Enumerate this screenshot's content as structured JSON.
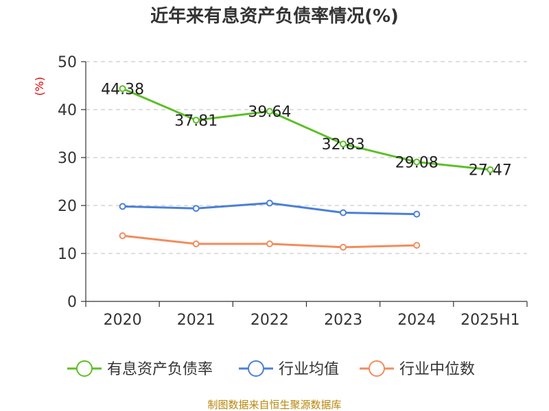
{
  "chart_data": {
    "type": "line",
    "title": "近年来有息资产负债率情况(%)",
    "ylabel": "(%)",
    "xlabel": "",
    "categories": [
      "2020",
      "2021",
      "2022",
      "2023",
      "2024",
      "2025H1"
    ],
    "ylim": [
      0,
      50
    ],
    "yticks": [
      0,
      10,
      20,
      30,
      40,
      50
    ],
    "grid": true,
    "legend_position": "bottom",
    "series": [
      {
        "name": "有息资产负债率",
        "color": "#5cbf25",
        "values": [
          44.38,
          37.81,
          39.64,
          32.83,
          29.08,
          27.47
        ],
        "labels": [
          "44.38",
          "37.81",
          "39.64",
          "32.83",
          "29.08",
          "27.47"
        ]
      },
      {
        "name": "行业均值",
        "color": "#4a7fd8",
        "values": [
          19.8,
          19.4,
          20.5,
          18.5,
          18.2,
          null
        ]
      },
      {
        "name": "行业中位数",
        "color": "#f28c5c",
        "values": [
          13.7,
          12.0,
          12.0,
          11.3,
          11.7,
          null
        ]
      }
    ]
  },
  "source": "制图数据来自恒生聚源数据库"
}
